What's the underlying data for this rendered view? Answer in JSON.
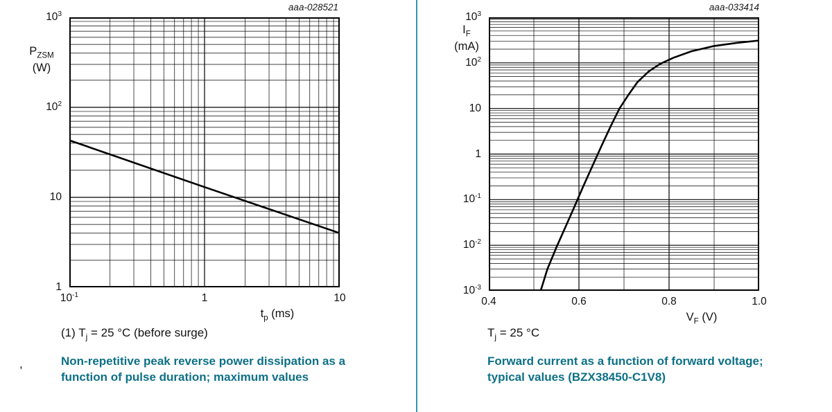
{
  "layout_colors": {
    "background": "#ffffff",
    "divider_teal": "#2d9aac",
    "caption_teal": "#0d7086",
    "grid_color": "#000000",
    "curve_color": "#000000"
  },
  "left": {
    "figure_code": "aaa-028521",
    "y_axis_label": {
      "symbol": "P",
      "subscript": "ZSM",
      "unit": "(W)"
    },
    "x_axis_label": {
      "symbol": "t",
      "subscript": "p",
      "unit": " (ms)"
    },
    "note": {
      "p1": "(1) T",
      "sub": "j",
      "p2": " = 25 °C (before surge)"
    },
    "stray_mark": ",",
    "caption": "Non-repetitive peak reverse power dissipation as a function of pulse duration; maximum values"
  },
  "right": {
    "figure_code": "aaa-033414",
    "y_axis_label": {
      "symbol": "I",
      "subscript": "F",
      "unit": "(mA)"
    },
    "x_axis_label": {
      "symbol": "V",
      "subscript": "F",
      "unit": " (V)"
    },
    "note": {
      "p1": "T",
      "sub": "j",
      "p2": " = 25 °C"
    },
    "caption": "Forward current as a function of forward voltage; typical values (BZX38450-C1V8)"
  },
  "chart_data": [
    {
      "name": "pzsm-vs-tp",
      "type": "line",
      "title": "Non-repetitive peak reverse power dissipation as a function of pulse duration; maximum values",
      "condition": "Tj = 25 °C (before surge)",
      "x_scale": "log",
      "y_scale": "log",
      "xlim": [
        0.1,
        10
      ],
      "ylim": [
        1,
        1000
      ],
      "x_ticks": [
        0.1,
        1,
        10
      ],
      "y_ticks": [
        1,
        10,
        100,
        1000
      ],
      "xlabel": "tp (ms)",
      "ylabel": "PZSM (W)",
      "grid": "major+minor log grid, on",
      "legend": "none",
      "series": [
        {
          "name": "PZSM maximum",
          "x": [
            0.1,
            1,
            10
          ],
          "y": [
            43,
            13,
            4
          ]
        }
      ]
    },
    {
      "name": "if-vs-vf",
      "type": "line",
      "title": "Forward current as a function of forward voltage; typical values (BZX38450-C1V8)",
      "condition": "Tj = 25 °C",
      "x_scale": "linear",
      "y_scale": "log",
      "xlim": [
        0.4,
        1.0
      ],
      "ylim": [
        0.001,
        1000
      ],
      "x_ticks": [
        0.4,
        0.6,
        0.8,
        1.0
      ],
      "x_grid_step": 0.1,
      "y_ticks": [
        0.001,
        0.01,
        0.1,
        1,
        10,
        100,
        1000
      ],
      "xlabel": "VF (V)",
      "ylabel": "IF (mA)",
      "grid": "major+minor, on",
      "legend": "none",
      "series": [
        {
          "name": "IF typical",
          "x": [
            0.515,
            0.53,
            0.55,
            0.57,
            0.59,
            0.61,
            0.63,
            0.65,
            0.67,
            0.69,
            0.71,
            0.73,
            0.755,
            0.78,
            0.81,
            0.85,
            0.9,
            0.95,
            1.0
          ],
          "y": [
            0.001,
            0.003,
            0.009,
            0.025,
            0.07,
            0.2,
            0.55,
            1.5,
            4,
            10,
            20,
            38,
            65,
            95,
            130,
            180,
            235,
            275,
            310
          ]
        }
      ]
    }
  ]
}
